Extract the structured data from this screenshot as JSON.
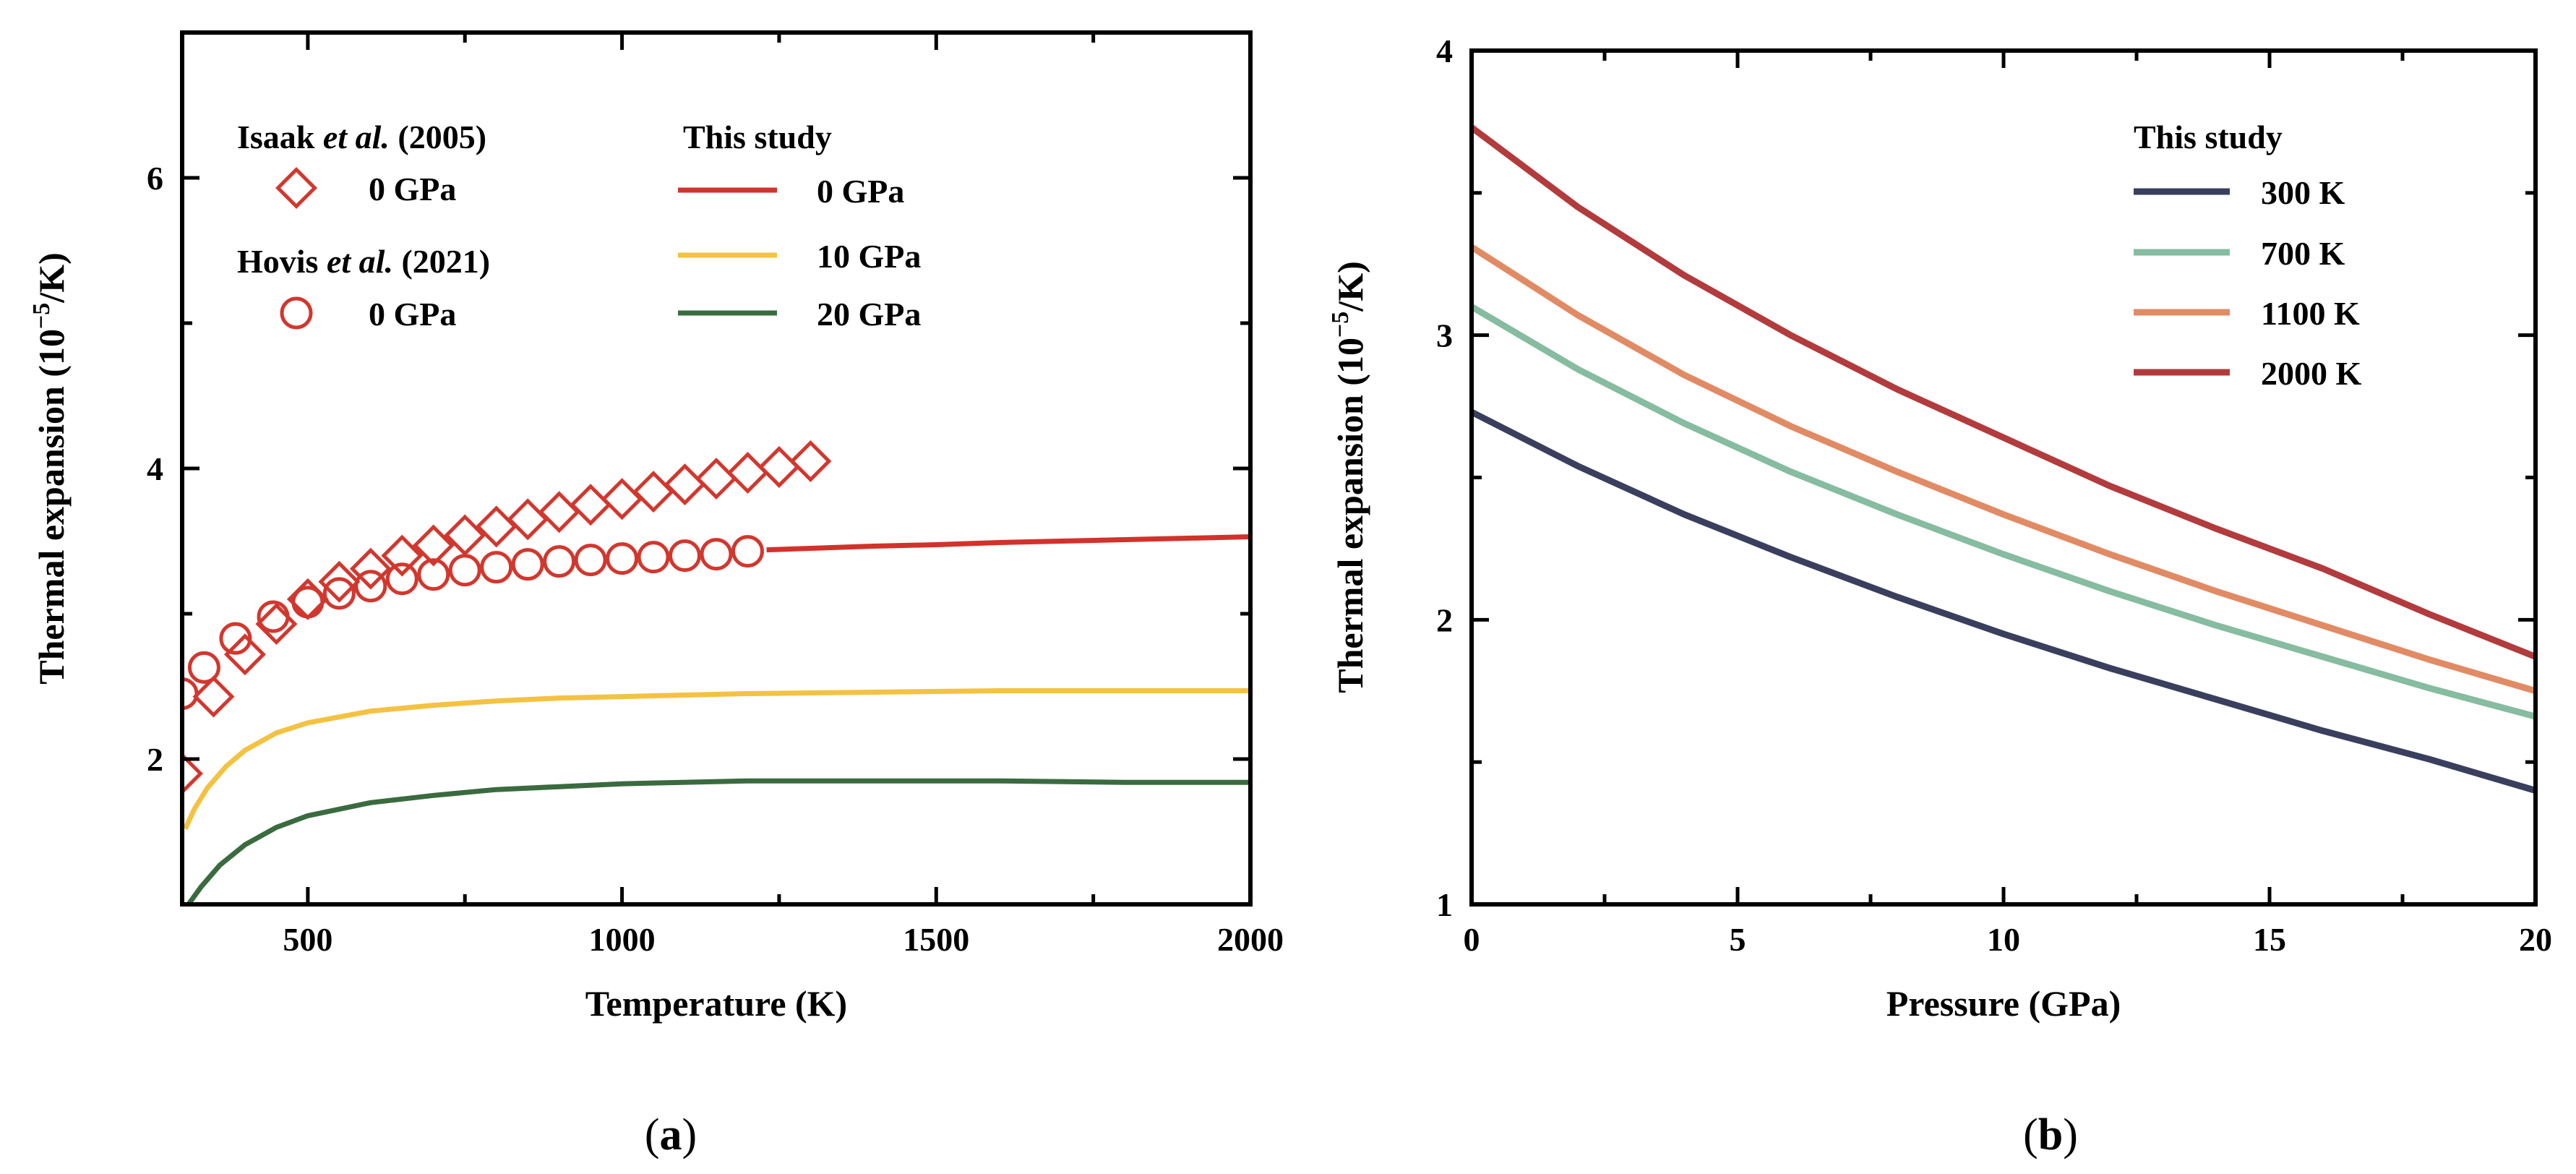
{
  "panels": {
    "a": {
      "label_open": "(",
      "label_letter": "a",
      "label_close": ")"
    },
    "b": {
      "label_open": "(",
      "label_letter": "b",
      "label_close": ")"
    }
  },
  "chart_data": [
    {
      "panel": "a",
      "type": "line",
      "title": "",
      "xlabel": "Temperature (K)",
      "ylabel": "Thermal expansion (10⁻⁵/K)",
      "ylabel_parts": [
        "Thermal expansion (10",
        "−5",
        "/K)"
      ],
      "xlim": [
        300,
        2000
      ],
      "ylim": [
        1.0,
        7.0
      ],
      "xticks": [
        500,
        1000,
        1500,
        2000
      ],
      "yticks": [
        2,
        4,
        6
      ],
      "legend_left": {
        "groups": [
          {
            "title_parts": [
              "Isaak ",
              "et al.",
              " (2005)"
            ],
            "label": "0 GPa",
            "marker": "diamond"
          },
          {
            "title_parts": [
              "Hovis ",
              "et al.",
              " (2021)"
            ],
            "label": "0 GPa",
            "marker": "circle"
          }
        ]
      },
      "legend_right": {
        "title": "This study"
      },
      "marker_color": "#d2372e",
      "series": [
        {
          "name": "0 GPa",
          "color": "#d2322c",
          "x": [
            1230,
            1300,
            1400,
            1500,
            1600,
            1700,
            1800,
            1900,
            2000
          ],
          "y": [
            3.44,
            3.45,
            3.465,
            3.475,
            3.49,
            3.5,
            3.51,
            3.52,
            3.53
          ]
        },
        {
          "name": "10 GPa",
          "color": "#f4c242",
          "x": [
            305,
            320,
            340,
            370,
            400,
            450,
            500,
            600,
            700,
            800,
            900,
            1000,
            1200,
            1400,
            1600,
            1800,
            2000
          ],
          "y": [
            1.52,
            1.66,
            1.8,
            1.95,
            2.06,
            2.18,
            2.25,
            2.33,
            2.37,
            2.4,
            2.42,
            2.43,
            2.45,
            2.46,
            2.47,
            2.47,
            2.47
          ]
        },
        {
          "name": "20 GPa",
          "color": "#3a6b3f",
          "x": [
            310,
            330,
            360,
            400,
            450,
            500,
            600,
            700,
            800,
            900,
            1000,
            1200,
            1400,
            1600,
            1800,
            2000
          ],
          "y": [
            1.0,
            1.12,
            1.27,
            1.41,
            1.53,
            1.61,
            1.7,
            1.75,
            1.79,
            1.81,
            1.83,
            1.85,
            1.85,
            1.85,
            1.84,
            1.84
          ]
        }
      ],
      "markers": [
        {
          "name": "Isaak et al. (2005)",
          "shape": "diamond",
          "x": [
            300,
            350,
            400,
            450,
            500,
            550,
            600,
            650,
            700,
            750,
            800,
            850,
            900,
            950,
            1000,
            1050,
            1100,
            1150,
            1200,
            1250,
            1300
          ],
          "y": [
            1.9,
            2.43,
            2.72,
            2.93,
            3.1,
            3.22,
            3.31,
            3.4,
            3.47,
            3.54,
            3.6,
            3.65,
            3.7,
            3.75,
            3.79,
            3.84,
            3.89,
            3.93,
            3.97,
            4.01,
            4.05
          ]
        },
        {
          "name": "Hovis et al. (2021)",
          "shape": "circle",
          "x": [
            300,
            335,
            385,
            445,
            500,
            550,
            600,
            650,
            700,
            750,
            800,
            850,
            900,
            950,
            1000,
            1050,
            1100,
            1150,
            1200
          ],
          "y": [
            2.45,
            2.63,
            2.83,
            2.98,
            3.08,
            3.14,
            3.19,
            3.24,
            3.27,
            3.3,
            3.32,
            3.34,
            3.36,
            3.37,
            3.38,
            3.39,
            3.4,
            3.41,
            3.43
          ]
        }
      ]
    },
    {
      "panel": "b",
      "type": "line",
      "title": "",
      "xlabel": "Pressure (GPa)",
      "ylabel": "Thermal expansion (10⁻⁵/K)",
      "ylabel_parts": [
        "Thermal expansion (10",
        "−5",
        "/K)"
      ],
      "xlim": [
        0,
        20
      ],
      "ylim": [
        1,
        4
      ],
      "xticks": [
        0,
        5,
        10,
        15,
        20
      ],
      "yticks": [
        1,
        2,
        3,
        4
      ],
      "legend": {
        "title": "This study",
        "position": "top-right"
      },
      "series": [
        {
          "name": "300 K",
          "color": "#3a3f5e",
          "x": [
            0,
            2,
            4,
            6,
            8,
            10,
            12,
            14,
            16,
            18,
            20
          ],
          "y": [
            2.73,
            2.54,
            2.37,
            2.22,
            2.08,
            1.95,
            1.83,
            1.72,
            1.61,
            1.51,
            1.4
          ]
        },
        {
          "name": "700 K",
          "color": "#86bca0",
          "x": [
            0,
            2,
            4,
            6,
            8,
            10,
            12,
            14,
            16,
            18,
            20
          ],
          "y": [
            3.1,
            2.88,
            2.69,
            2.52,
            2.37,
            2.23,
            2.1,
            1.98,
            1.87,
            1.76,
            1.66
          ]
        },
        {
          "name": "1100 K",
          "color": "#e18b65",
          "x": [
            0,
            2,
            4,
            6,
            8,
            10,
            12,
            14,
            16,
            18,
            20
          ],
          "y": [
            3.31,
            3.07,
            2.86,
            2.68,
            2.52,
            2.37,
            2.23,
            2.1,
            1.98,
            1.86,
            1.75
          ]
        },
        {
          "name": "2000 K",
          "color": "#b23b3d",
          "x": [
            0,
            2,
            4,
            6,
            8,
            10,
            12,
            14,
            16,
            18,
            20
          ],
          "y": [
            3.73,
            3.45,
            3.21,
            3.0,
            2.81,
            2.64,
            2.47,
            2.32,
            2.18,
            2.02,
            1.87
          ]
        }
      ]
    }
  ]
}
